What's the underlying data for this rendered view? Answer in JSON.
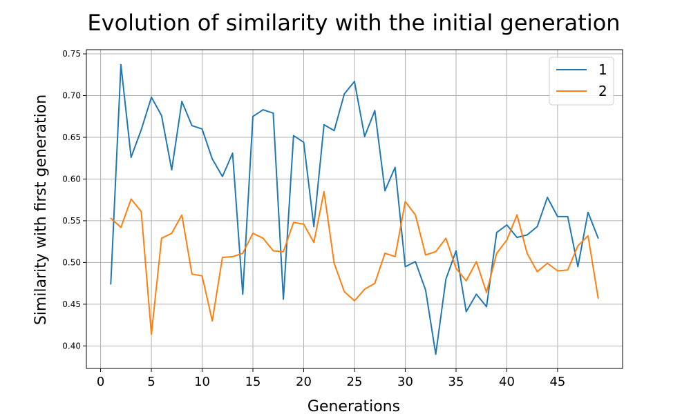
{
  "chart_data": {
    "type": "line",
    "title": "Evolution of similarity with the initial generation",
    "xlabel": "Generations",
    "ylabel": "Similarity with first generation",
    "xlim": [
      -1.4,
      51.4
    ],
    "ylim": [
      0.373,
      0.755
    ],
    "xticks": [
      0,
      5,
      10,
      15,
      20,
      25,
      30,
      35,
      40,
      45
    ],
    "yticks": [
      0.4,
      0.45,
      0.5,
      0.55,
      0.6,
      0.65,
      0.7,
      0.75
    ],
    "ytick_labels": [
      "0.40",
      "0.45",
      "0.50",
      "0.55",
      "0.60",
      "0.65",
      "0.70",
      "0.75"
    ],
    "grid": true,
    "legend_position": "top-right",
    "x": [
      1,
      2,
      3,
      4,
      5,
      6,
      7,
      8,
      9,
      10,
      11,
      12,
      13,
      14,
      15,
      16,
      17,
      18,
      19,
      20,
      21,
      22,
      23,
      24,
      25,
      26,
      27,
      28,
      29,
      30,
      31,
      32,
      33,
      34,
      35,
      36,
      37,
      38,
      39,
      40,
      41,
      42,
      43,
      44,
      45,
      46,
      47,
      48,
      49
    ],
    "series": [
      {
        "name": "1",
        "color": "#1f77b4",
        "values": [
          0.474,
          0.737,
          0.626,
          0.659,
          0.698,
          0.676,
          0.611,
          0.693,
          0.664,
          0.66,
          0.624,
          0.603,
          0.631,
          0.462,
          0.675,
          0.683,
          0.679,
          0.456,
          0.652,
          0.644,
          0.543,
          0.665,
          0.658,
          0.702,
          0.717,
          0.651,
          0.682,
          0.586,
          0.614,
          0.495,
          0.501,
          0.467,
          0.39,
          0.48,
          0.514,
          0.441,
          0.462,
          0.447,
          0.536,
          0.545,
          0.53,
          0.533,
          0.543,
          0.578,
          0.555,
          0.555,
          0.495,
          0.56,
          0.529
        ]
      },
      {
        "name": "2",
        "color": "#ff7f0e",
        "values": [
          0.553,
          0.542,
          0.576,
          0.561,
          0.414,
          0.529,
          0.535,
          0.557,
          0.486,
          0.484,
          0.43,
          0.506,
          0.507,
          0.511,
          0.535,
          0.529,
          0.514,
          0.513,
          0.548,
          0.546,
          0.524,
          0.585,
          0.499,
          0.465,
          0.454,
          0.468,
          0.475,
          0.511,
          0.507,
          0.573,
          0.557,
          0.509,
          0.513,
          0.529,
          0.493,
          0.478,
          0.501,
          0.464,
          0.511,
          0.527,
          0.557,
          0.511,
          0.489,
          0.499,
          0.49,
          0.491,
          0.52,
          0.532,
          0.457
        ]
      }
    ]
  }
}
